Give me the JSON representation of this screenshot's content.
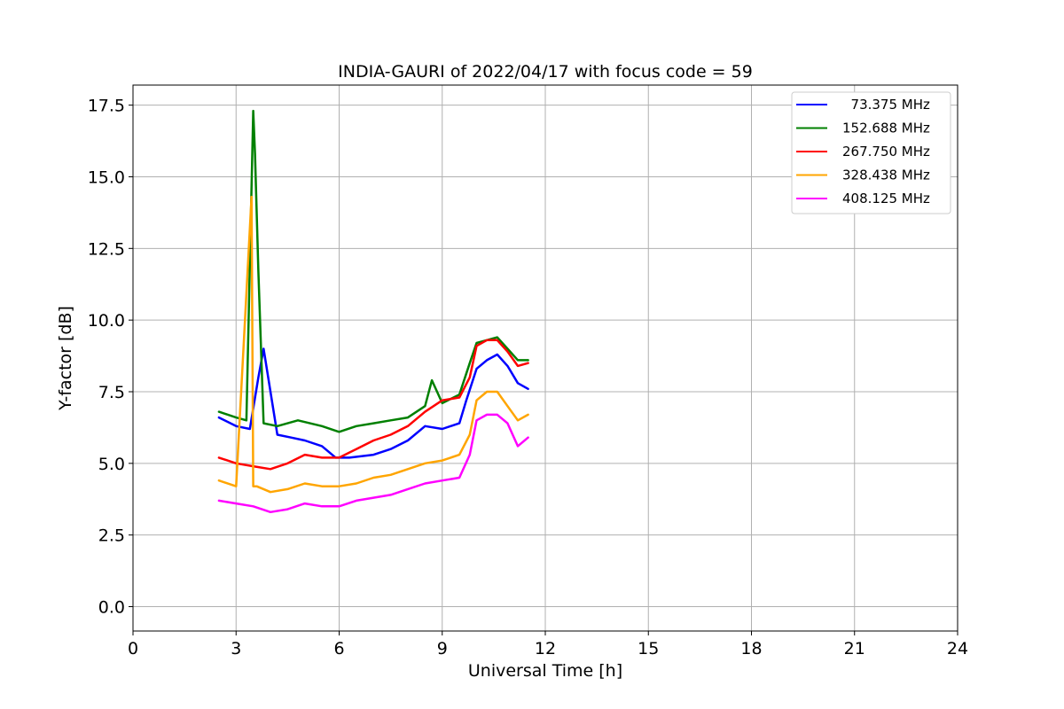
{
  "chart_data": {
    "type": "line",
    "title": "INDIA-GAURI of 2022/04/17 with focus code = 59",
    "xlabel": "Universal Time [h]",
    "ylabel": "Y-factor [dB]",
    "xlim": [
      0,
      24
    ],
    "ylim": [
      -0.85,
      18.2
    ],
    "x_ticks": [
      0,
      3,
      6,
      9,
      12,
      15,
      18,
      21,
      24
    ],
    "x_tick_labels": [
      "0",
      "3",
      "6",
      "9",
      "12",
      "15",
      "18",
      "21",
      "24"
    ],
    "y_ticks": [
      0,
      2.5,
      5,
      7.5,
      10,
      12.5,
      15,
      17.5
    ],
    "y_tick_labels": [
      "0.0",
      "2.5",
      "5.0",
      "7.5",
      "10.0",
      "12.5",
      "15.0",
      "17.5"
    ],
    "grid": true,
    "legend_position": "top-right",
    "series": [
      {
        "name": "  73.375 MHz",
        "color": "#0000ff",
        "x": [
          2.5,
          3.0,
          3.4,
          3.65,
          3.8,
          4.2,
          4.6,
          5.0,
          5.5,
          5.9,
          6.3,
          7.0,
          7.5,
          8.0,
          8.5,
          9.0,
          9.5,
          9.7,
          10.0,
          10.3,
          10.6,
          10.9,
          11.2,
          11.5
        ],
        "y": [
          6.6,
          6.3,
          6.2,
          8.0,
          9.0,
          6.0,
          5.9,
          5.8,
          5.6,
          5.2,
          5.2,
          5.3,
          5.5,
          5.8,
          6.3,
          6.2,
          6.4,
          7.2,
          8.3,
          8.6,
          8.8,
          8.4,
          7.8,
          7.6
        ]
      },
      {
        "name": "152.688 MHz",
        "color": "#008000",
        "x": [
          2.5,
          3.0,
          3.3,
          3.5,
          3.55,
          3.65,
          3.8,
          4.2,
          4.8,
          5.5,
          6.0,
          6.5,
          7.0,
          7.5,
          8.0,
          8.5,
          8.7,
          9.0,
          9.5,
          9.8,
          10.0,
          10.3,
          10.6,
          10.9,
          11.2,
          11.5
        ],
        "y": [
          6.8,
          6.6,
          6.5,
          17.3,
          15.8,
          11.7,
          6.4,
          6.3,
          6.5,
          6.3,
          6.1,
          6.3,
          6.4,
          6.5,
          6.6,
          7.0,
          7.9,
          7.1,
          7.4,
          8.5,
          9.2,
          9.3,
          9.4,
          9.0,
          8.6,
          8.6
        ]
      },
      {
        "name": "267.750 MHz",
        "color": "#ff0000",
        "x": [
          2.5,
          3.0,
          3.5,
          4.0,
          4.5,
          5.0,
          5.5,
          6.0,
          6.5,
          7.0,
          7.5,
          8.0,
          8.5,
          9.0,
          9.5,
          9.8,
          10.0,
          10.3,
          10.6,
          10.9,
          11.2,
          11.5
        ],
        "y": [
          5.2,
          5.0,
          4.9,
          4.8,
          5.0,
          5.3,
          5.2,
          5.2,
          5.5,
          5.8,
          6.0,
          6.3,
          6.8,
          7.2,
          7.3,
          8.0,
          9.1,
          9.3,
          9.3,
          8.9,
          8.4,
          8.5
        ]
      },
      {
        "name": "328.438 MHz",
        "color": "#ffa500",
        "x": [
          2.5,
          3.0,
          3.45,
          3.5,
          3.6,
          4.0,
          4.5,
          5.0,
          5.5,
          6.0,
          6.5,
          7.0,
          7.5,
          8.0,
          8.5,
          9.0,
          9.5,
          9.8,
          10.0,
          10.3,
          10.6,
          10.9,
          11.2,
          11.5
        ],
        "y": [
          4.4,
          4.2,
          14.3,
          4.2,
          4.2,
          4.0,
          4.1,
          4.3,
          4.2,
          4.2,
          4.3,
          4.5,
          4.6,
          4.8,
          5.0,
          5.1,
          5.3,
          6.0,
          7.2,
          7.5,
          7.5,
          7.0,
          6.5,
          6.7
        ]
      },
      {
        "name": "408.125 MHz",
        "color": "#ff00ff",
        "x": [
          2.5,
          3.0,
          3.5,
          4.0,
          4.5,
          5.0,
          5.5,
          6.0,
          6.5,
          7.0,
          7.5,
          8.0,
          8.5,
          9.0,
          9.5,
          9.8,
          10.0,
          10.3,
          10.6,
          10.9,
          11.2,
          11.5
        ],
        "y": [
          3.7,
          3.6,
          3.5,
          3.3,
          3.4,
          3.6,
          3.5,
          3.5,
          3.7,
          3.8,
          3.9,
          4.1,
          4.3,
          4.4,
          4.5,
          5.3,
          6.5,
          6.7,
          6.7,
          6.4,
          5.6,
          5.9
        ]
      }
    ]
  }
}
